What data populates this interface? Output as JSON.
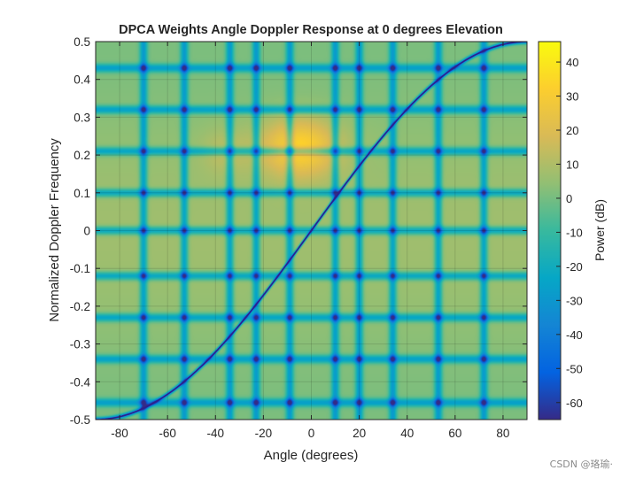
{
  "chart_data": {
    "type": "heatmap",
    "title": "DPCA Weights Angle Doppler Response at 0 degrees Elevation",
    "xlabel": "Angle (degrees)",
    "ylabel": "Normalized Doppler Frequency",
    "xlim": [
      -90,
      90
    ],
    "ylim": [
      -0.5,
      0.5
    ],
    "x_ticks": [
      -80,
      -60,
      -40,
      -20,
      0,
      20,
      40,
      60,
      80
    ],
    "y_ticks": [
      -0.5,
      -0.4,
      -0.3,
      -0.2,
      -0.1,
      0,
      0.1,
      0.2,
      0.3,
      0.4,
      0.5
    ],
    "colorbar": {
      "label": "Power (dB)",
      "limits": [
        -65,
        46
      ],
      "ticks": [
        -60,
        -50,
        -40,
        -30,
        -20,
        -10,
        0,
        10,
        20,
        30,
        40
      ],
      "colormap": "parula"
    },
    "grid": true,
    "angle_nulls_deg": [
      -70,
      -53,
      -34,
      -23,
      -9,
      10,
      20,
      34,
      53,
      72
    ],
    "doppler_nulls": [
      -0.455,
      -0.34,
      -0.23,
      -0.12,
      0.0,
      0.1,
      0.21,
      0.32,
      0.43
    ],
    "peak": {
      "angle": -5,
      "doppler": 0.22,
      "power_db": 38
    },
    "clutter_ridge": "normalized_doppler = 0.5 * sin(angle)"
  },
  "watermark": "CSDN @珞瑜·"
}
